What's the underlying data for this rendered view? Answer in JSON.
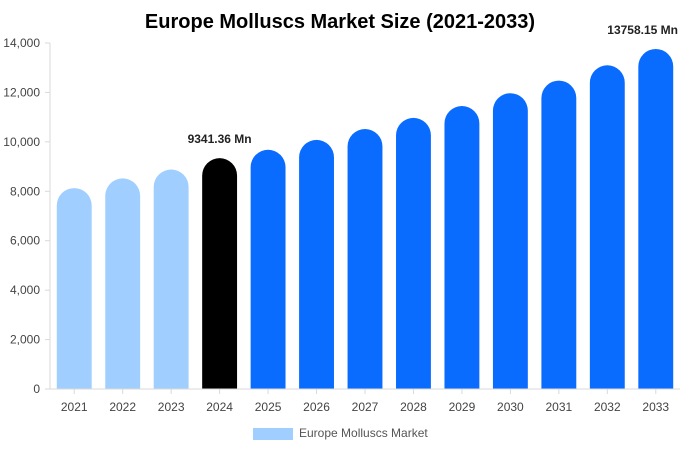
{
  "chart_data": {
    "type": "bar",
    "title": "Europe Molluscs Market Size (2021-2033)",
    "xlabel": "",
    "ylabel": "",
    "categories": [
      "2021",
      "2022",
      "2023",
      "2024",
      "2025",
      "2026",
      "2027",
      "2028",
      "2029",
      "2030",
      "2031",
      "2032",
      "2033"
    ],
    "series": [
      {
        "name": "Europe Molluscs Market",
        "values": [
          8130,
          8520,
          8880,
          9341.36,
          9680,
          10080,
          10520,
          10970,
          11450,
          11970,
          12480,
          13100,
          13758.15
        ]
      }
    ],
    "bar_colors": [
      "#a0cfff",
      "#a0cfff",
      "#a0cfff",
      "#000000",
      "#0a6cff",
      "#0a6cff",
      "#0a6cff",
      "#0a6cff",
      "#0a6cff",
      "#0a6cff",
      "#0a6cff",
      "#0a6cff",
      "#0a6cff"
    ],
    "data_labels": [
      {
        "index": 3,
        "text": "9341.36 Mn"
      },
      {
        "index": 12,
        "text": "13758.15 Mn"
      }
    ],
    "ylim": [
      0,
      14000
    ],
    "yticks": [
      0,
      2000,
      4000,
      6000,
      8000,
      10000,
      12000,
      14000
    ],
    "ytick_labels": [
      "0",
      "2,000",
      "4,000",
      "6,000",
      "8,000",
      "10,000",
      "12,000",
      "14,000"
    ],
    "legend": {
      "label": "Europe Molluscs Market",
      "color": "#a0cfff",
      "placement": "bottom"
    },
    "grid": false
  }
}
